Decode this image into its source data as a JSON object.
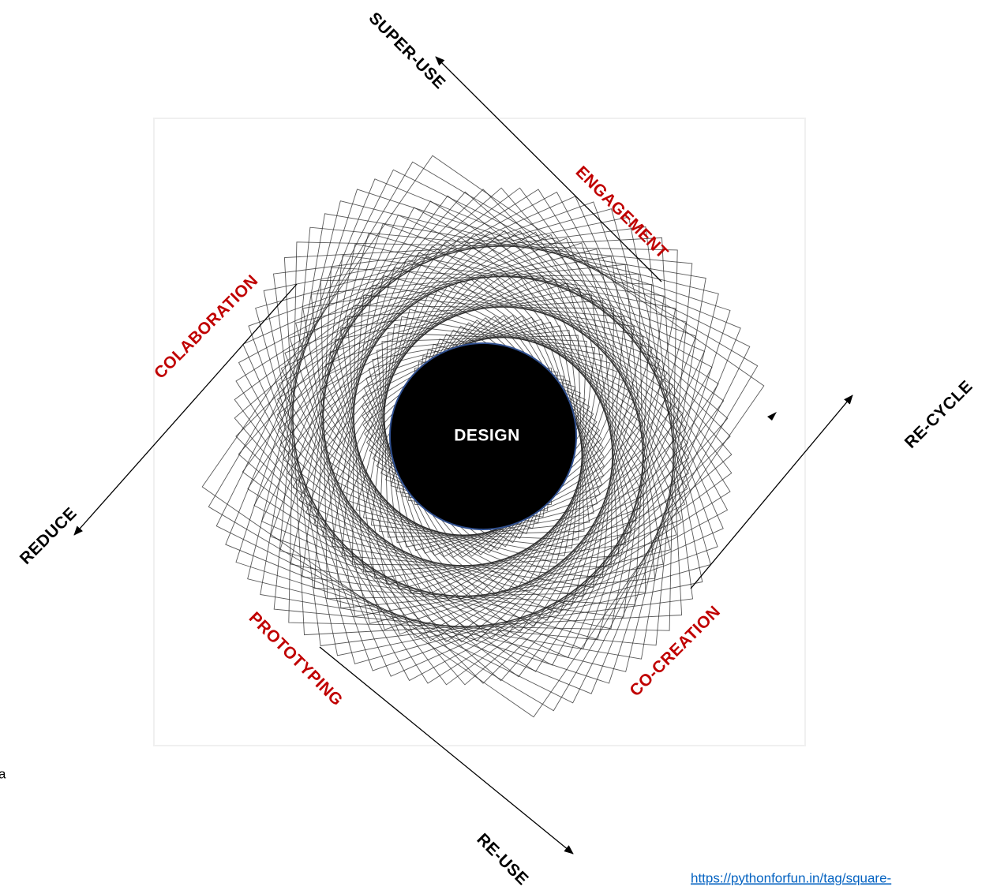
{
  "labels": {
    "super_use": "SUPER-USE",
    "engagement": "ENGAGEMENT",
    "colaboration": "COLABORATION",
    "re_cycle": "RE-CYCLE",
    "design": "DESIGN",
    "reduce": "REDUCE",
    "prototyping": "PROTOTYPING",
    "co_creation": "CO-CREATION",
    "re_use": "RE-USE"
  },
  "source_link": "https://pythonforfun.in/tag/square-",
  "stray_text": "a"
}
